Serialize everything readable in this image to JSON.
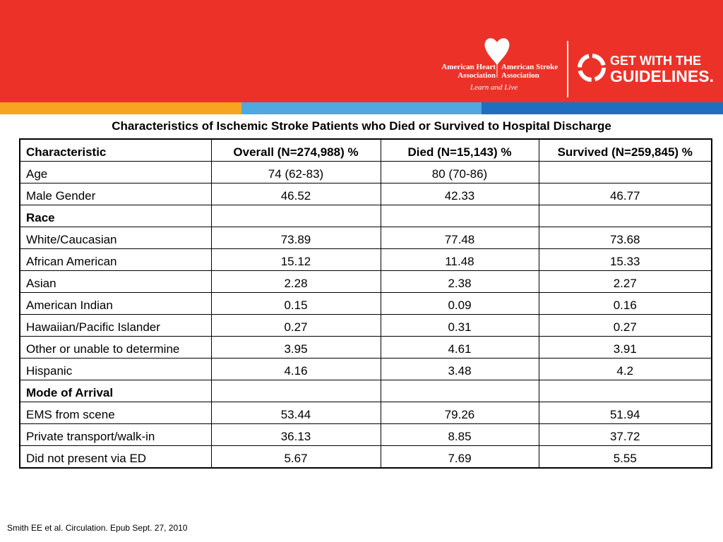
{
  "header": {
    "aha": "American Heart Association",
    "asa": "American Stroke Association",
    "tagline": "Learn and Live",
    "gwtg_top": "GET WITH THE",
    "gwtg_bottom": "GUIDELINES."
  },
  "table": {
    "title": "Characteristics of Ischemic Stroke Patients who Died or Survived to Hospital Discharge",
    "columns": [
      "Characteristic",
      "Overall (N=274,988) %",
      "Died (N=15,143) %",
      "Survived (N=259,845) %"
    ],
    "rows": [
      {
        "cells": [
          "Age",
          "74 (62-83)",
          "80 (70-86)",
          null
        ]
      },
      {
        "cells": [
          "Male Gender",
          "46.52",
          "42.33",
          "46.77"
        ]
      },
      {
        "cells": [
          "Race",
          null,
          null,
          null
        ],
        "bold": true
      },
      {
        "cells": [
          "White/Caucasian",
          "73.89",
          "77.48",
          "73.68"
        ]
      },
      {
        "cells": [
          "African American",
          "15.12",
          "11.48",
          "15.33"
        ]
      },
      {
        "cells": [
          "Asian",
          "2.28",
          "2.38",
          "2.27"
        ]
      },
      {
        "cells": [
          "American Indian",
          "0.15",
          "0.09",
          "0.16"
        ]
      },
      {
        "cells": [
          "Hawaiian/Pacific Islander",
          "0.27",
          "0.31",
          "0.27"
        ]
      },
      {
        "cells": [
          "Other or unable to determine",
          "3.95",
          "4.61",
          "3.91"
        ]
      },
      {
        "cells": [
          "Hispanic",
          "4.16",
          "3.48",
          "4.2"
        ]
      },
      {
        "cells": [
          "Mode of Arrival",
          null,
          null,
          null
        ],
        "bold": true
      },
      {
        "cells": [
          "EMS from scene",
          "53.44",
          "79.26",
          "51.94"
        ]
      },
      {
        "cells": [
          "Private transport/walk-in",
          "36.13",
          "8.85",
          "37.72"
        ]
      },
      {
        "cells": [
          "Did not present via ED",
          "5.67",
          "7.69",
          "5.55"
        ]
      }
    ]
  },
  "footer": {
    "citation": "Smith EE et al. Circulation.  Epub Sept. 27, 2010"
  }
}
